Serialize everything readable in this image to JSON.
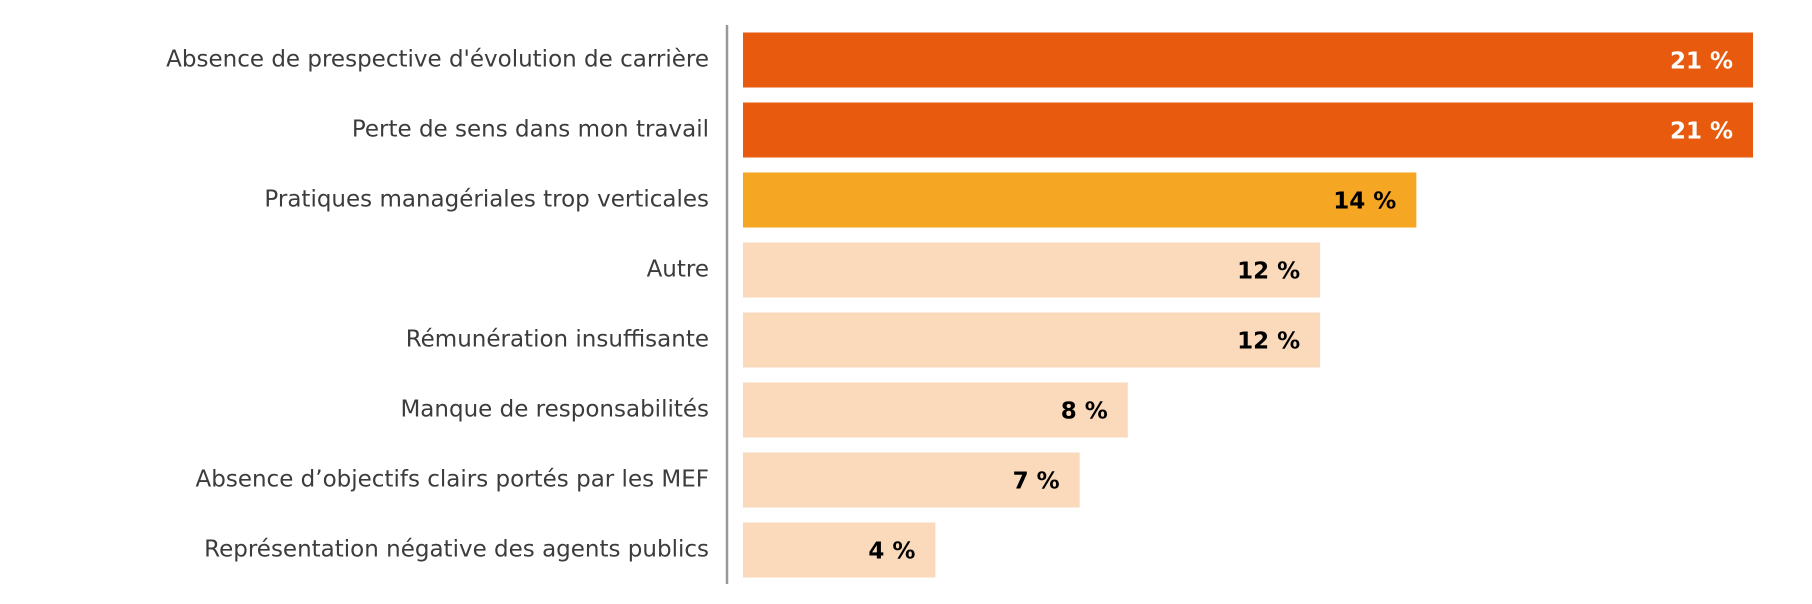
{
  "chart_data": {
    "type": "bar",
    "orientation": "horizontal",
    "categories": [
      "Absence de prespective d'évolution de carrière",
      "Perte de sens dans mon travail",
      "Pratiques managériales trop verticales",
      "Autre",
      "Rémunération insuffisante",
      "Manque de responsabilités",
      "Absence d’objectifs clairs portés par les MEF",
      "Représentation négative des agents publics"
    ],
    "values": [
      21,
      21,
      14,
      12,
      12,
      8,
      7,
      4
    ],
    "value_labels": [
      "21 %",
      "21 %",
      "14 %",
      "12 %",
      "12 %",
      "8 %",
      "7 %",
      "4 %"
    ],
    "colors": [
      "#e85b0e",
      "#e85b0e",
      "#f5a623",
      "#fbd9bb",
      "#fbd9bb",
      "#fbd9bb",
      "#fbd9bb",
      "#fbd9bb"
    ],
    "value_label_colors": [
      "#ffffff",
      "#ffffff",
      "#000000",
      "#000000",
      "#000000",
      "#000000",
      "#000000",
      "#000000"
    ]
  }
}
